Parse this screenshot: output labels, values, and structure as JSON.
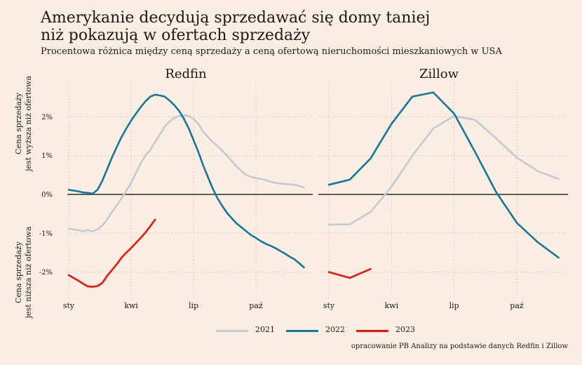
{
  "title_line1": "Amerykanie decydują sprzedawać się domy taniej",
  "title_line2": "niż pokazują w ofertach sprzedaży",
  "subtitle": "Procentowa różnica między ceną sprzedaży a ceną ofertową nieruchomości mieszkaniowych w USA",
  "source": "opracowanie PB Analizy na podstawie danych Redfin i Zillow",
  "y_label_upper": [
    "Cena sprzedaży",
    "jest wyższa niż ofertowa"
  ],
  "y_label_lower": [
    "Cena sprzedaży",
    "jest niższa niż ofertowa"
  ],
  "colors": {
    "2021": "#c3c9d6",
    "2022": "#13779c",
    "2023": "#e8160c",
    "background": "#faede1",
    "zero_line": "#4a4a42"
  },
  "legend": [
    {
      "label": "2021",
      "color": "#c3c9d6"
    },
    {
      "label": "2022",
      "color": "#13779c"
    },
    {
      "label": "2023",
      "color": "#e8160c"
    }
  ],
  "chart_data": [
    {
      "type": "line",
      "title": "Redfin",
      "x_unit": "week of year",
      "xlim": [
        1,
        53
      ],
      "ylim": [
        -2.7,
        2.9
      ],
      "yticks": [
        -2,
        -1,
        0,
        1,
        2
      ],
      "ytick_labels": [
        "-2%",
        "-1%",
        "0%",
        "1%",
        "2%"
      ],
      "xticks": [
        1,
        14,
        27,
        40
      ],
      "xtick_labels": [
        "sty",
        "kwi",
        "lip",
        "paź"
      ],
      "grid": true,
      "series": [
        {
          "name": "2021",
          "x": [
            1,
            3,
            4,
            5,
            6,
            7,
            8,
            9,
            10,
            11,
            12,
            13,
            14,
            15,
            16,
            17,
            18,
            19,
            20,
            21,
            22,
            23,
            24,
            25,
            26,
            27,
            28,
            29,
            30,
            31,
            32,
            33,
            34,
            35,
            36,
            37,
            38,
            39,
            40,
            41,
            42,
            43,
            44,
            45,
            46,
            47,
            48,
            49,
            50
          ],
          "y": [
            -0.88,
            -0.92,
            -0.95,
            -0.92,
            -0.95,
            -0.9,
            -0.8,
            -0.65,
            -0.45,
            -0.28,
            -0.1,
            0.1,
            0.3,
            0.55,
            0.8,
            1.0,
            1.15,
            1.35,
            1.55,
            1.75,
            1.88,
            1.97,
            2.02,
            2.04,
            2.02,
            1.95,
            1.82,
            1.62,
            1.48,
            1.35,
            1.25,
            1.12,
            1.0,
            0.85,
            0.72,
            0.6,
            0.5,
            0.45,
            0.42,
            0.4,
            0.37,
            0.33,
            0.3,
            0.28,
            0.27,
            0.26,
            0.25,
            0.22,
            0.18
          ]
        },
        {
          "name": "2022",
          "x": [
            1,
            3,
            4,
            5,
            6,
            7,
            8,
            9,
            10,
            11,
            12,
            13,
            14,
            15,
            16,
            17,
            18,
            19,
            20,
            21,
            22,
            23,
            24,
            25,
            26,
            27,
            28,
            29,
            30,
            31,
            32,
            33,
            34,
            35,
            36,
            37,
            38,
            39,
            40,
            41,
            42,
            43,
            44,
            45,
            46,
            47,
            48,
            49,
            50
          ],
          "y": [
            0.12,
            0.08,
            0.05,
            0.04,
            0.02,
            0.12,
            0.35,
            0.65,
            0.95,
            1.22,
            1.48,
            1.7,
            1.9,
            2.08,
            2.25,
            2.4,
            2.52,
            2.57,
            2.55,
            2.52,
            2.42,
            2.3,
            2.15,
            1.95,
            1.7,
            1.4,
            1.1,
            0.75,
            0.45,
            0.15,
            -0.1,
            -0.3,
            -0.48,
            -0.62,
            -0.75,
            -0.85,
            -0.95,
            -1.05,
            -1.12,
            -1.2,
            -1.27,
            -1.32,
            -1.38,
            -1.45,
            -1.52,
            -1.6,
            -1.67,
            -1.77,
            -1.88
          ]
        },
        {
          "name": "2023",
          "x": [
            1,
            3,
            4,
            5,
            6,
            7,
            8,
            9,
            10,
            11,
            12,
            13,
            14,
            15,
            16,
            17,
            18,
            19
          ],
          "y": [
            -2.08,
            -2.22,
            -2.3,
            -2.37,
            -2.38,
            -2.36,
            -2.28,
            -2.1,
            -1.95,
            -1.8,
            -1.63,
            -1.5,
            -1.38,
            -1.25,
            -1.12,
            -0.98,
            -0.82,
            -0.65
          ]
        }
      ]
    },
    {
      "type": "line",
      "title": "Zillow",
      "x_unit": "month",
      "xlim": [
        0.5,
        12.5
      ],
      "ylim": [
        -2.7,
        2.9
      ],
      "yticks": [
        -2,
        -1,
        0,
        1,
        2
      ],
      "xticks": [
        1,
        4,
        7,
        10
      ],
      "xtick_labels": [
        "sty",
        "kwi",
        "lip",
        "paź"
      ],
      "grid": true,
      "series": [
        {
          "name": "2021",
          "x": [
            1,
            2,
            3,
            4,
            5,
            6,
            7,
            8,
            9,
            10,
            11,
            12
          ],
          "y": [
            -0.78,
            -0.77,
            -0.45,
            0.2,
            1.0,
            1.7,
            2.02,
            1.92,
            1.45,
            0.95,
            0.6,
            0.4
          ]
        },
        {
          "name": "2022",
          "x": [
            1,
            2,
            3,
            4,
            5,
            6,
            7,
            8,
            9,
            10,
            11,
            12
          ],
          "y": [
            0.25,
            0.38,
            0.93,
            1.82,
            2.52,
            2.63,
            2.08,
            1.1,
            0.07,
            -0.73,
            -1.23,
            -1.63
          ]
        },
        {
          "name": "2023",
          "x": [
            1,
            2,
            3
          ],
          "y": [
            -2.0,
            -2.15,
            -1.92
          ]
        }
      ]
    }
  ]
}
